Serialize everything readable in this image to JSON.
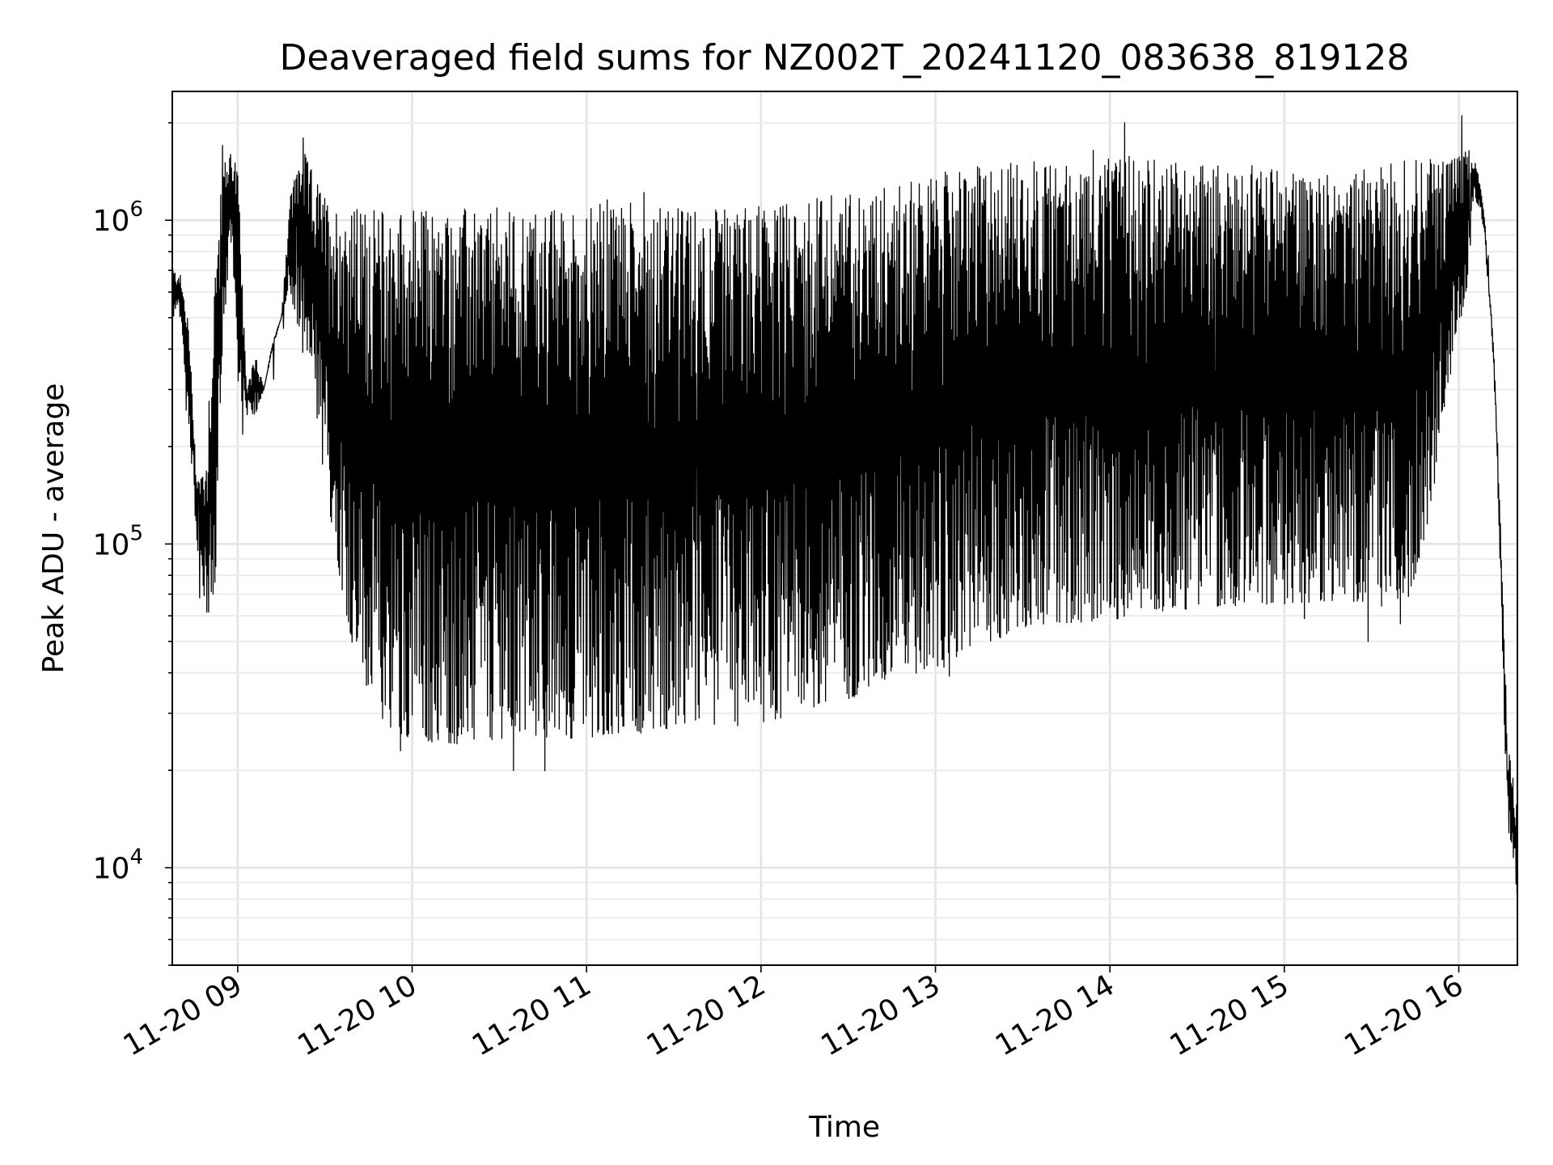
{
  "chart_data": {
    "type": "line",
    "title": "Deaveraged field sums for NZ002T_20241120_083638_819128",
    "xlabel": "Time",
    "ylabel": "Peak ADU - average",
    "yscale": "log",
    "xlim": [
      "2024-11-20 08:37:30",
      "2024-11-20 16:20:10"
    ],
    "ylim": [
      5000,
      2500000
    ],
    "grid": true,
    "x_ticks": [
      {
        "t": "2024-11-20 09:00",
        "label": "11-20 09"
      },
      {
        "t": "2024-11-20 10:00",
        "label": "11-20 10"
      },
      {
        "t": "2024-11-20 11:00",
        "label": "11-20 11"
      },
      {
        "t": "2024-11-20 12:00",
        "label": "11-20 12"
      },
      {
        "t": "2024-11-20 13:00",
        "label": "11-20 13"
      },
      {
        "t": "2024-11-20 14:00",
        "label": "11-20 14"
      },
      {
        "t": "2024-11-20 15:00",
        "label": "11-20 15"
      },
      {
        "t": "2024-11-20 16:00",
        "label": "11-20 16"
      }
    ],
    "y_ticks": [
      {
        "value": 10000,
        "base": "10",
        "exp": "4"
      },
      {
        "value": 100000,
        "base": "10",
        "exp": "5"
      },
      {
        "value": 1000000,
        "base": "10",
        "exp": "6"
      }
    ],
    "series": [
      {
        "color": "#000000",
        "style": "dense oscillating line between lower and upper envelope",
        "envelope": {
          "time": [
            "08:37:30",
            "08:40",
            "08:43",
            "08:46",
            "08:49",
            "08:52",
            "08:55",
            "08:58",
            "09:00",
            "09:03",
            "09:06",
            "09:09",
            "09:12",
            "09:15",
            "09:18",
            "09:22",
            "09:26",
            "09:30",
            "09:35",
            "09:40",
            "09:45",
            "09:50",
            "09:55",
            "10:00",
            "10:10",
            "10:20",
            "10:30",
            "10:40",
            "10:50",
            "11:00",
            "11:10",
            "11:20",
            "11:30",
            "11:40",
            "11:50",
            "12:00",
            "12:10",
            "12:20",
            "12:30",
            "12:40",
            "12:50",
            "13:00",
            "13:10",
            "13:20",
            "13:30",
            "13:40",
            "13:50",
            "14:00",
            "14:10",
            "14:20",
            "14:30",
            "14:40",
            "14:50",
            "15:00",
            "15:10",
            "15:20",
            "15:30",
            "15:35",
            "15:40",
            "15:45",
            "15:50",
            "15:55",
            "16:00",
            "16:03",
            "16:05",
            "16:07",
            "16:09",
            "16:10",
            "16:11",
            "16:12",
            "16:13",
            "16:14",
            "16:15",
            "16:16",
            "16:17",
            "16:18",
            "16:19",
            "16:20:10"
          ],
          "upper": [
            700000,
            700000,
            500000,
            160000,
            180000,
            700000,
            1500000,
            1700000,
            1500000,
            300000,
            400000,
            300000,
            420000,
            500000,
            1200000,
            1700000,
            1400000,
            1200000,
            1100000,
            1100000,
            1100000,
            1100000,
            1100000,
            1100000,
            1100000,
            1100000,
            1100000,
            1100000,
            1100000,
            1100000,
            1200000,
            1150000,
            1100000,
            1100000,
            1100000,
            1150000,
            1150000,
            1200000,
            1250000,
            1300000,
            1350000,
            1400000,
            1450000,
            1500000,
            1550000,
            1550000,
            1550000,
            1550000,
            1600000,
            1550000,
            1550000,
            1500000,
            1500000,
            1450000,
            1450000,
            1450000,
            1450000,
            1500000,
            1550000,
            1550000,
            1550000,
            1600000,
            1600000,
            1700000,
            1600000,
            1350000,
            1000000,
            700000,
            550000,
            400000,
            250000,
            150000,
            80000,
            40000,
            25000,
            22000,
            18000,
            16000
          ],
          "lower": [
            500000,
            500000,
            250000,
            100000,
            60000,
            60000,
            450000,
            900000,
            300000,
            250000,
            250000,
            300000,
            400000,
            500000,
            600000,
            400000,
            300000,
            150000,
            80000,
            45000,
            33000,
            28000,
            26000,
            25000,
            24000,
            24000,
            25000,
            25000,
            25000,
            25000,
            26000,
            26000,
            27000,
            27000,
            27000,
            28000,
            29000,
            31000,
            33000,
            36000,
            38000,
            40000,
            45000,
            50000,
            55000,
            57000,
            57000,
            58000,
            60000,
            62000,
            63000,
            64000,
            65000,
            65000,
            66000,
            67000,
            65000,
            60000,
            55000,
            80000,
            120000,
            250000,
            450000,
            600000,
            1100000,
            1100000,
            900000,
            600000,
            500000,
            350000,
            200000,
            100000,
            50000,
            20000,
            13000,
            12000,
            10000,
            8000
          ]
        }
      }
    ]
  }
}
